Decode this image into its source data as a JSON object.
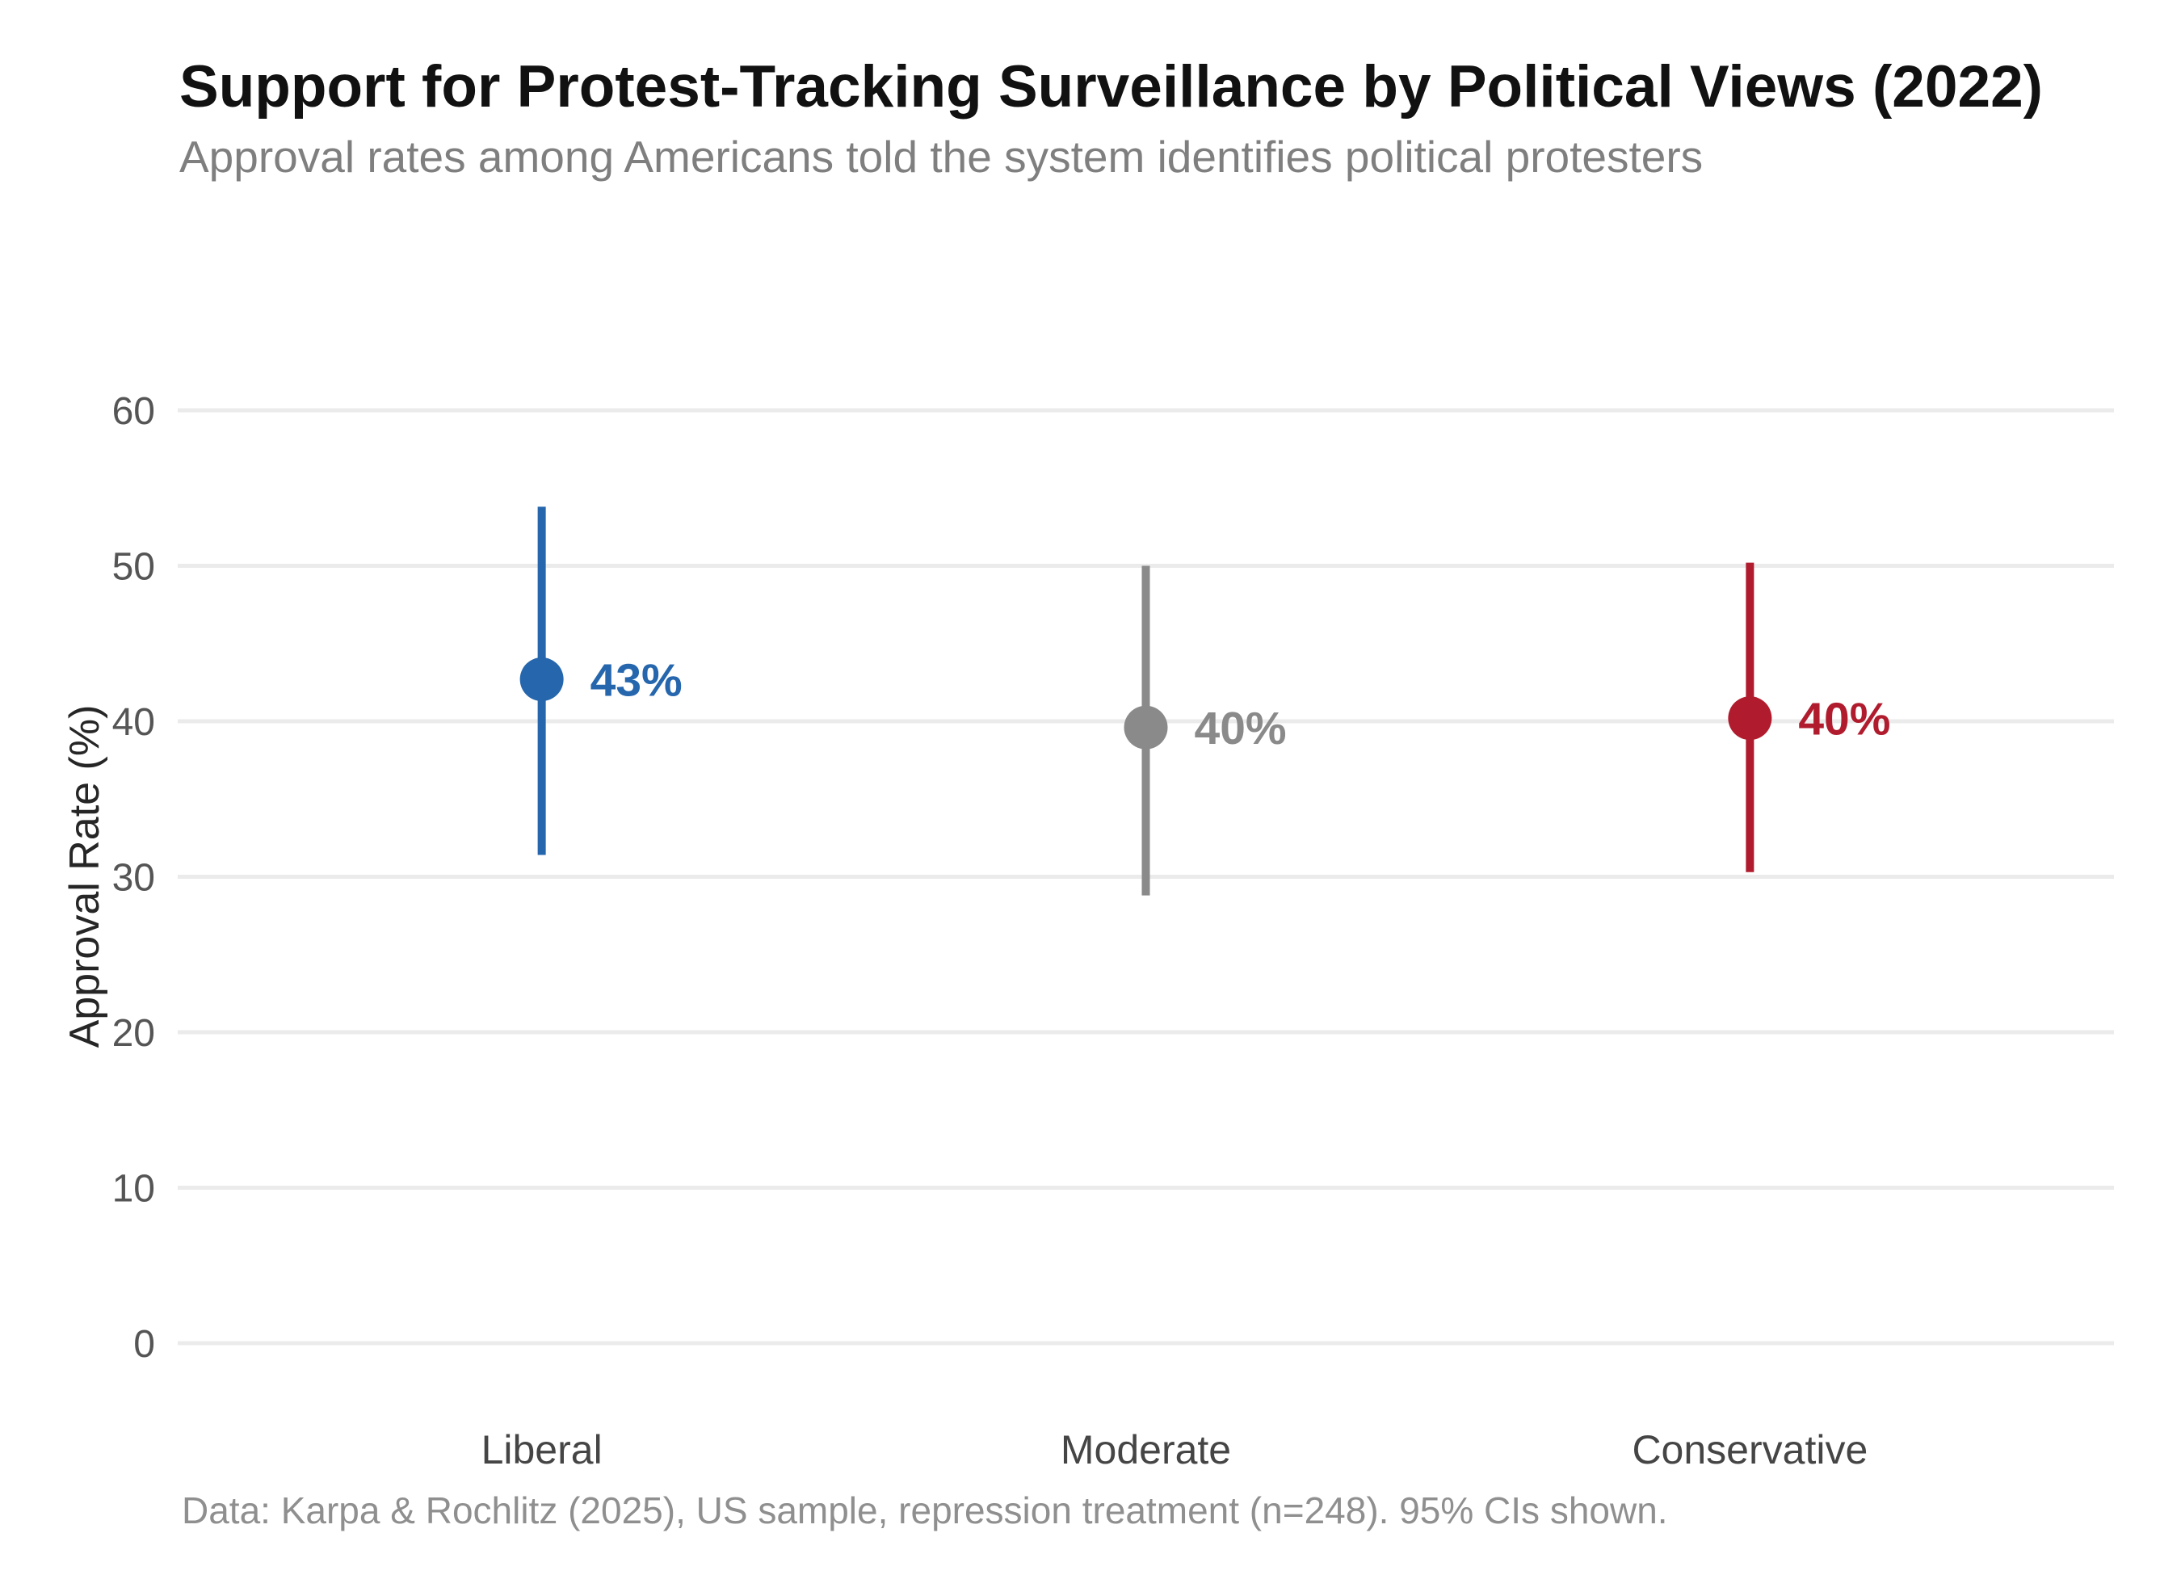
{
  "header": {
    "title": "Support for Protest-Tracking Surveillance by Political Views (2022)",
    "subtitle": "Approval rates among Americans told the system identifies political protesters"
  },
  "footer": {
    "note": "Data: Karpa & Rochlitz (2025), US sample, repression treatment (n=248). 95% CIs shown."
  },
  "chart_data": {
    "type": "scatter",
    "title": "Support for Protest-Tracking Surveillance by Political Views (2022)",
    "subtitle": "Approval rates among Americans told the system identifies political protesters",
    "xlabel": "",
    "ylabel": "Approval Rate (%)",
    "ylim": [
      0,
      63
    ],
    "yticks": [
      0,
      10,
      20,
      30,
      40,
      50,
      60
    ],
    "grid": true,
    "legend": "none",
    "error_bars": "95% confidence intervals",
    "categories": [
      "Liberal",
      "Moderate",
      "Conservative"
    ],
    "series": [
      {
        "name": "Liberal",
        "value": 42.7,
        "ci_low": 31.4,
        "ci_high": 53.8,
        "label": "43%",
        "color": "#2566ad"
      },
      {
        "name": "Moderate",
        "value": 39.6,
        "ci_low": 28.8,
        "ci_high": 50.0,
        "label": "40%",
        "color": "#8a8a8a"
      },
      {
        "name": "Conservative",
        "value": 40.2,
        "ci_low": 30.3,
        "ci_high": 50.2,
        "label": "40%",
        "color": "#b01c2e"
      }
    ],
    "source_note": "Data: Karpa & Rochlitz (2025), US sample, repression treatment (n=248). 95% CIs shown."
  },
  "style": {
    "gridline_color": "#ebebeb",
    "tick_label_color": "#555555",
    "category_label_color": "#454545",
    "title_color": "#111111",
    "subtitle_color": "#7f7f7f",
    "footer_color": "#8f8f8f",
    "background": "#ffffff"
  }
}
